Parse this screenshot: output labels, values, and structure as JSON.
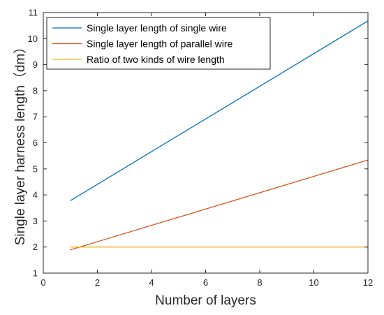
{
  "chart_data": {
    "type": "line",
    "xlabel": "Number of layers",
    "ylabel": "Single layer harness length（dm）",
    "xlim": [
      0,
      12
    ],
    "ylim": [
      1,
      11
    ],
    "xticks": [
      0,
      2,
      4,
      6,
      8,
      10,
      12
    ],
    "yticks": [
      1,
      2,
      3,
      4,
      5,
      6,
      7,
      8,
      9,
      10,
      11
    ],
    "grid": false,
    "legend_position": "top-left",
    "series": [
      {
        "name": "Single layer length of single wire",
        "color": "#0072BD",
        "x": [
          1,
          12
        ],
        "y": [
          3.78,
          10.68
        ]
      },
      {
        "name": "Single layer length of parallel wire",
        "color": "#D95319",
        "x": [
          1,
          12
        ],
        "y": [
          1.89,
          5.34
        ]
      },
      {
        "name": "Ratio of two kinds of wire length",
        "color": "#EDB120",
        "x": [
          1,
          12
        ],
        "y": [
          2.0,
          2.0
        ]
      }
    ]
  }
}
